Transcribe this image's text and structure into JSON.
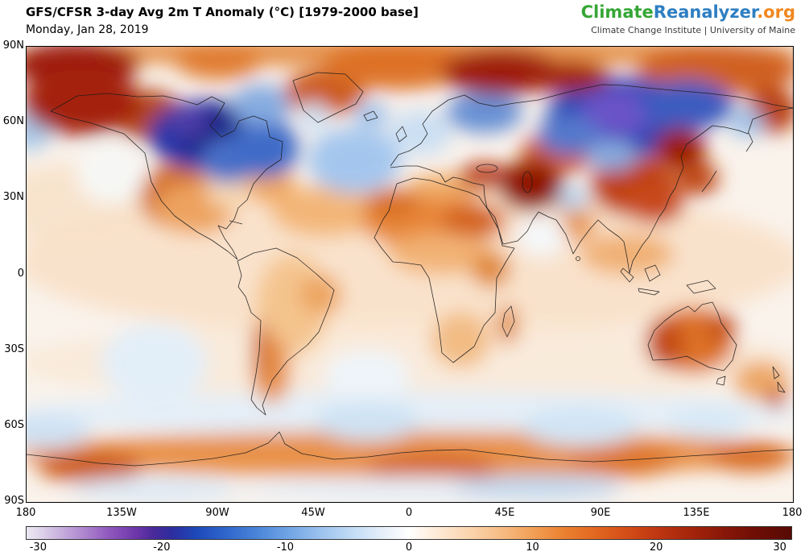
{
  "header": {
    "title": "GFS/CFSR 3-day Avg 2m T Anomaly (°C) [1979-2000 base]",
    "date": "Monday, Jan 28, 2019"
  },
  "branding": {
    "climate": "Climate",
    "reanalyzer": "Reanalyzer",
    "org": ".org",
    "subtitle": "Climate Change Institute | University of Maine",
    "colors": {
      "climate": "#35a635",
      "reanalyzer": "#2e7fc2",
      "org": "#f0871f"
    }
  },
  "map": {
    "lat_ticks": [
      "90N",
      "60N",
      "30N",
      "0",
      "30S",
      "60S",
      "90S"
    ],
    "lon_ticks": [
      "180",
      "135W",
      "90W",
      "45W",
      "0",
      "45E",
      "90E",
      "135E",
      "180"
    ]
  },
  "chart_data": {
    "type": "heatmap",
    "title": "GFS/CFSR 3-day Avg 2m T Anomaly (°C) [1979-2000 base]",
    "date": "Monday, Jan 28, 2019",
    "units": "°C",
    "colorbar": {
      "ticks": [
        -30,
        -20,
        -10,
        0,
        10,
        20,
        30
      ],
      "range": [
        -31,
        31
      ],
      "stops": [
        {
          "pos": 0.0,
          "color": "#ece9f2"
        },
        {
          "pos": 0.02,
          "color": "#ddd2ea"
        },
        {
          "pos": 0.05,
          "color": "#c3a8db"
        },
        {
          "pos": 0.08,
          "color": "#a97fcc"
        },
        {
          "pos": 0.11,
          "color": "#8e55bd"
        },
        {
          "pos": 0.145,
          "color": "#6c35a8"
        },
        {
          "pos": 0.165,
          "color": "#4a2a9b"
        },
        {
          "pos": 0.19,
          "color": "#2d2d9e"
        },
        {
          "pos": 0.22,
          "color": "#1d47b8"
        },
        {
          "pos": 0.26,
          "color": "#2e66cc"
        },
        {
          "pos": 0.3,
          "color": "#4984d8"
        },
        {
          "pos": 0.34,
          "color": "#6ea3e4"
        },
        {
          "pos": 0.385,
          "color": "#9cc2ee"
        },
        {
          "pos": 0.43,
          "color": "#c6def6"
        },
        {
          "pos": 0.47,
          "color": "#e9f1fa"
        },
        {
          "pos": 0.5,
          "color": "#ffffff"
        },
        {
          "pos": 0.53,
          "color": "#fdeedd"
        },
        {
          "pos": 0.57,
          "color": "#fbd9b6"
        },
        {
          "pos": 0.62,
          "color": "#f7bd85"
        },
        {
          "pos": 0.66,
          "color": "#f2a158"
        },
        {
          "pos": 0.7,
          "color": "#ec8332"
        },
        {
          "pos": 0.745,
          "color": "#e2661f"
        },
        {
          "pos": 0.79,
          "color": "#d14a17"
        },
        {
          "pos": 0.83,
          "color": "#bb3410"
        },
        {
          "pos": 0.87,
          "color": "#a3240b"
        },
        {
          "pos": 0.91,
          "color": "#8a1708"
        },
        {
          "pos": 0.95,
          "color": "#700e05"
        },
        {
          "pos": 1.0,
          "color": "#570a04"
        }
      ]
    },
    "anomaly_features": [
      {
        "region": "tropics-wash",
        "lon": 0,
        "lat": 5,
        "rlon": 185,
        "rlat": 30,
        "anom": 2,
        "color": "#f8dcc0",
        "opacity": 0.75
      },
      {
        "region": "south-midlat-wash",
        "lon": 0,
        "lat": -35,
        "rlon": 185,
        "rlat": 16,
        "anom": 1,
        "color": "#f9e8d6",
        "opacity": 0.8
      },
      {
        "region": "southern-ocean-wash",
        "lon": 0,
        "lat": -55,
        "rlon": 185,
        "rlat": 9,
        "anom": -1,
        "color": "#e2eef8",
        "opacity": 0.9
      },
      {
        "region": "arctic-top-wash",
        "lon": 0,
        "lat": 88,
        "rlon": 185,
        "rlat": 6,
        "anom": 8,
        "color": "#e2873c",
        "opacity": 0.9
      },
      {
        "region": "npacific-wash",
        "lon": -160,
        "lat": 28,
        "rlon": 36,
        "rlat": 16,
        "anom": 2,
        "color": "#f8e0c6",
        "opacity": 0.8
      },
      {
        "region": "nw-canada-coast",
        "lon": -123,
        "lat": 63,
        "rlon": 17,
        "rlat": 10,
        "anom": 12,
        "color": "#b54a16"
      },
      {
        "region": "west-us",
        "lon": -110,
        "lat": 31,
        "rlon": 17,
        "rlat": 13,
        "anom": 6,
        "color": "#d4702c"
      },
      {
        "region": "mexico",
        "lon": -101,
        "lat": 26,
        "rlon": 19,
        "rlat": 10,
        "anom": 4,
        "color": "#eda35e"
      },
      {
        "region": "se-us",
        "lon": -85,
        "lat": 33,
        "rlon": 10,
        "rlat": 7,
        "anom": 2,
        "color": "#f7d8b4"
      },
      {
        "region": "greenland-north",
        "lon": -40,
        "lat": 72,
        "rlon": 19,
        "rlat": 9,
        "anom": 10,
        "color": "#cc5a1c"
      },
      {
        "region": "arctic-central",
        "lon": -6,
        "lat": 83,
        "rlon": 34,
        "rlat": 10,
        "anom": 10,
        "color": "#dd7226"
      },
      {
        "region": "arctic-canada",
        "lon": -90,
        "lat": 84,
        "rlon": 20,
        "rlat": 7,
        "anom": 10,
        "color": "#e07c30"
      },
      {
        "region": "top-right-arctic",
        "lon": 145,
        "lat": 81,
        "rlon": 38,
        "rlat": 10,
        "anom": 12,
        "color": "#d06020"
      },
      {
        "region": "chukotka",
        "lon": 170,
        "lat": 65,
        "rlon": 12,
        "rlat": 9,
        "anom": 10,
        "color": "#b83c10"
      },
      {
        "region": "gulf-stream",
        "lon": -65,
        "lat": 35,
        "rlon": 12,
        "rlat": 7,
        "anom": 3,
        "color": "#f0a860"
      },
      {
        "region": "mid-atlantic",
        "lon": -40,
        "lat": 25,
        "rlon": 25,
        "rlat": 10,
        "anom": 2,
        "color": "#f3b678"
      },
      {
        "region": "sahara",
        "lon": 9,
        "lat": 21,
        "rlon": 32,
        "rlat": 11,
        "anom": 6,
        "color": "#e8883a"
      },
      {
        "region": "morocco",
        "lon": -8,
        "lat": 28,
        "rlon": 13,
        "rlat": 6,
        "anom": 8,
        "color": "#d96f24"
      },
      {
        "region": "libya-egypt",
        "lon": 30,
        "lat": 21,
        "rlon": 15,
        "rlat": 7,
        "anom": 8,
        "color": "#d4631e"
      },
      {
        "region": "mediterranean",
        "lon": 18,
        "lat": 35,
        "rlon": 19,
        "rlat": 5,
        "anom": 4,
        "color": "#f0ad6a"
      },
      {
        "region": "turkey-caucasus",
        "lon": 35,
        "lat": 39,
        "rlon": 12,
        "rlat": 5,
        "anom": 10,
        "color": "#b8330e"
      },
      {
        "region": "kazakhstan",
        "lon": 70,
        "lat": 48,
        "rlon": 18,
        "rlat": 8,
        "anom": 10,
        "color": "#cc5618"
      },
      {
        "region": "china",
        "lon": 105,
        "lat": 35,
        "rlon": 20,
        "rlat": 12,
        "anom": 10,
        "color": "#c04010"
      },
      {
        "region": "east-china-coast",
        "lon": 115,
        "lat": 28,
        "rlon": 14,
        "rlat": 8,
        "anom": 8,
        "color": "#c8481a"
      },
      {
        "region": "japan-korea",
        "lon": 135,
        "lat": 38,
        "rlon": 10,
        "rlat": 7,
        "anom": 8,
        "color": "#c04818"
      },
      {
        "region": "se-asia",
        "lon": 102,
        "lat": 8,
        "rlon": 22,
        "rlat": 8,
        "anom": 3,
        "color": "#f0b074"
      },
      {
        "region": "india",
        "lon": 78,
        "lat": 20,
        "rlon": 9,
        "rlat": 7,
        "anom": 4,
        "color": "#e8964e"
      },
      {
        "region": "sahel",
        "lon": 15,
        "lat": 8,
        "rlon": 25,
        "rlat": 8,
        "anom": 3,
        "color": "#f2b274"
      },
      {
        "region": "east-africa",
        "lon": 38,
        "lat": 2,
        "rlon": 9,
        "rlat": 7,
        "anom": 5,
        "color": "#e08838"
      },
      {
        "region": "southern-africa",
        "lon": 24,
        "lat": -26,
        "rlon": 14,
        "rlat": 11,
        "anom": 3,
        "color": "#f2bc84"
      },
      {
        "region": "madagascar",
        "lon": 46,
        "lat": -20,
        "rlon": 5,
        "rlat": 8,
        "anom": 5,
        "color": "#e08a40"
      },
      {
        "region": "australia",
        "lon": 133,
        "lat": -26,
        "rlon": 20,
        "rlat": 13,
        "anom": 8,
        "color": "#dd7226"
      },
      {
        "region": "west-australia",
        "lon": 120,
        "lat": -27,
        "rlon": 9,
        "rlat": 10,
        "anom": 12,
        "color": "#c44c12"
      },
      {
        "region": "queensland",
        "lon": 146,
        "lat": -21,
        "rlon": 7,
        "rlat": 6,
        "anom": 10,
        "color": "#c8521a"
      },
      {
        "region": "amazon",
        "lon": -55,
        "lat": -12,
        "rlon": 17,
        "rlat": 20,
        "anom": 2,
        "color": "#f4c48e"
      },
      {
        "region": "argentina",
        "lon": -65,
        "lat": -38,
        "rlon": 9,
        "rlat": 13,
        "anom": 6,
        "color": "#e8914a"
      },
      {
        "region": "chile-andes",
        "lon": -70,
        "lat": -30,
        "rlon": 4,
        "rlat": 12,
        "anom": 8,
        "color": "#d4702c"
      },
      {
        "region": "ne-brazil",
        "lon": -42,
        "lat": -8,
        "rlon": 10,
        "rlat": 8,
        "anom": 3,
        "color": "#eda560"
      },
      {
        "region": "nz-region",
        "lon": 165,
        "lat": -42,
        "rlon": 13,
        "rlat": 8,
        "anom": 3,
        "color": "#eda868"
      },
      {
        "region": "south-of-nz",
        "lon": 172,
        "lat": -49,
        "rlon": 5,
        "rlat": 4,
        "anom": 10,
        "color": "#c85014"
      },
      {
        "region": "antarctic-coast-band",
        "lon": 0,
        "lat": -71,
        "rlon": 185,
        "rlat": 9,
        "anom": 6,
        "color": "#e8914a"
      },
      {
        "region": "antarctic-coast-west",
        "lon": -150,
        "lat": -76,
        "rlon": 25,
        "rlat": 6,
        "anom": 10,
        "color": "#cc5a18"
      },
      {
        "region": "antarctic-coast-central",
        "lon": 10,
        "lat": -77,
        "rlon": 30,
        "rlat": 6,
        "anom": 10,
        "color": "#d4621c"
      },
      {
        "region": "antarctic-coast-east",
        "lon": 100,
        "lat": -74,
        "rlon": 25,
        "rlat": 6,
        "anom": 8,
        "color": "#dd7226"
      },
      {
        "region": "antarctic-coast-far-east",
        "lon": 160,
        "lat": -72,
        "rlon": 20,
        "rlat": 6,
        "anom": 8,
        "color": "#d86a22"
      },
      {
        "region": "hudson-bay-canada",
        "lon": -95,
        "lat": 55,
        "rlon": 28,
        "rlat": 14,
        "anom": -18,
        "color": "#2236a8"
      },
      {
        "region": "canada-core",
        "lon": -93,
        "lat": 56,
        "rlon": 16,
        "rlat": 10,
        "anom": -22,
        "color": "#1a2384"
      },
      {
        "region": "canada-purple",
        "lon": -105,
        "lat": 61,
        "rlon": 10,
        "rlat": 7,
        "anom": -24,
        "color": "#4c3ea8"
      },
      {
        "region": "great-lakes",
        "lon": -85,
        "lat": 45,
        "rlon": 13,
        "rlat": 9,
        "anom": -12,
        "color": "#4a70c8"
      },
      {
        "region": "labrador",
        "lon": -68,
        "lat": 50,
        "rlon": 16,
        "rlat": 12,
        "anom": -10,
        "color": "#3f6cc8"
      },
      {
        "region": "baffin",
        "lon": -70,
        "lat": 67,
        "rlon": 14,
        "rlat": 8,
        "anom": -6,
        "color": "#85abe0"
      },
      {
        "region": "south-greenland",
        "lon": -45,
        "lat": 62,
        "rlon": 7,
        "rlat": 6,
        "anom": -3,
        "color": "#cfe2f4"
      },
      {
        "region": "north-atlantic",
        "lon": -26,
        "lat": 45,
        "rlon": 22,
        "rlat": 13,
        "anom": -4,
        "color": "#a4c6ee"
      },
      {
        "region": "iceland",
        "lon": -18,
        "lat": 63,
        "rlon": 8,
        "rlat": 5,
        "anom": -4,
        "color": "#9cc0ea"
      },
      {
        "region": "europe",
        "lon": 5,
        "lat": 56,
        "rlon": 15,
        "rlat": 9,
        "anom": -2,
        "color": "#cbdff3"
      },
      {
        "region": "scandinavia",
        "lon": 35,
        "lat": 64,
        "rlon": 18,
        "rlat": 8,
        "anom": -6,
        "color": "#6890d4"
      },
      {
        "region": "siberia-blue",
        "lon": 100,
        "lat": 62,
        "rlon": 36,
        "rlat": 16,
        "anom": -18,
        "color": "#2846b4"
      },
      {
        "region": "siberia-purple-core",
        "lon": 98,
        "lat": 64,
        "rlon": 18,
        "rlat": 9,
        "anom": -26,
        "color": "#6a52c8"
      },
      {
        "region": "east-siberia",
        "lon": 130,
        "lat": 67,
        "rlon": 22,
        "rlat": 10,
        "anom": -14,
        "color": "#3c5cc0"
      },
      {
        "region": "west-siberia-south",
        "lon": 75,
        "lat": 55,
        "rlon": 15,
        "rlat": 8,
        "anom": -12,
        "color": "#5578cc"
      },
      {
        "region": "mongolia-edge",
        "lon": 95,
        "lat": 47,
        "rlon": 12,
        "rlat": 6,
        "anom": -6,
        "color": "#88aade"
      },
      {
        "region": "himalaya",
        "lon": 76,
        "lat": 30,
        "rlon": 8,
        "rlat": 5,
        "anom": -4,
        "color": "#b8d4ee"
      },
      {
        "region": "arabian-sea",
        "lon": 62,
        "lat": 15,
        "rlon": 12,
        "rlat": 8,
        "anom": 0,
        "color": "#f4f7f9"
      },
      {
        "region": "kamchatka",
        "lon": 158,
        "lat": 60,
        "rlon": 8,
        "rlat": 6,
        "anom": -4,
        "color": "#a0c2e8"
      },
      {
        "region": "bering-sea",
        "lon": -178,
        "lat": 57,
        "rlon": 10,
        "rlat": 8,
        "anom": -4,
        "color": "#a8c8e8"
      },
      {
        "region": "ne-pacific",
        "lon": -140,
        "lat": 40,
        "rlon": 16,
        "rlat": 12,
        "anom": 0,
        "color": "#f6f7f5"
      },
      {
        "region": "south-pacific",
        "lon": -120,
        "lat": -35,
        "rlon": 25,
        "rlat": 15,
        "anom": -1,
        "color": "#e2eef8"
      },
      {
        "region": "south-atlantic",
        "lon": -20,
        "lat": -40,
        "rlon": 20,
        "rlat": 10,
        "anom": 0,
        "color": "#eef4f9"
      },
      {
        "region": "southern-ocean-1",
        "lon": -20,
        "lat": -58,
        "rlon": 25,
        "rlat": 8,
        "anom": -2,
        "color": "#cfe3f4"
      },
      {
        "region": "southern-ocean-2",
        "lon": 80,
        "lat": -60,
        "rlon": 28,
        "rlat": 8,
        "anom": -2,
        "color": "#d2e5f5"
      },
      {
        "region": "southern-ocean-3",
        "lon": -170,
        "lat": -62,
        "rlon": 20,
        "rlat": 7,
        "anom": -2,
        "color": "#cfe2f4"
      },
      {
        "region": "southern-ocean-4",
        "lon": 140,
        "lat": -58,
        "rlon": 20,
        "rlat": 7,
        "anom": -2,
        "color": "#d8e9f6"
      },
      {
        "region": "antarctic-interior-1",
        "lon": 0,
        "lat": -85,
        "rlon": 80,
        "rlat": 5,
        "anom": -1,
        "color": "#e6eef6"
      },
      {
        "region": "antarctic-interior-2",
        "lon": 60,
        "lat": -84,
        "rlon": 40,
        "rlat": 5,
        "anom": -4,
        "color": "#c2d8ee"
      },
      {
        "region": "antarctic-interior-3",
        "lon": -120,
        "lat": -85,
        "rlon": 40,
        "rlat": 5,
        "anom": -2,
        "color": "#dce9f5"
      },
      {
        "region": "arctic-topleft-core",
        "lon": -157,
        "lat": 83,
        "rlon": 30,
        "rlat": 9,
        "anom": 20,
        "color": "#9e1c0a"
      },
      {
        "region": "alaska-core",
        "lon": -154,
        "lat": 68,
        "rlon": 28,
        "rlat": 13,
        "anom": 22,
        "color": "#a42108"
      },
      {
        "region": "barents-core",
        "lon": 43,
        "lat": 80,
        "rlon": 28,
        "rlat": 9,
        "anom": 20,
        "color": "#9e1c0a"
      },
      {
        "region": "kara-core",
        "lon": 73,
        "lat": 78,
        "rlon": 21,
        "rlat": 6,
        "anom": 22,
        "color": "#a02008"
      },
      {
        "region": "iran-core",
        "lon": 57,
        "lat": 35,
        "rlon": 15,
        "rlat": 10,
        "anom": 14,
        "color": "#8f1605"
      },
      {
        "region": "manchuria-core",
        "lon": 127,
        "lat": 50,
        "rlon": 12,
        "rlat": 8,
        "anom": 14,
        "color": "#9c1e06"
      }
    ]
  }
}
